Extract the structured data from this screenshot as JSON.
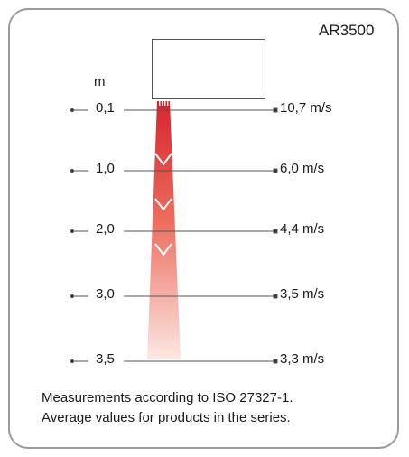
{
  "model": "AR3500",
  "unit": "m",
  "levels": [
    {
      "distance": "0,1",
      "velocity": "10,7 m/s"
    },
    {
      "distance": "1,0",
      "velocity": "6,0 m/s"
    },
    {
      "distance": "2,0",
      "velocity": "4,4 m/s"
    },
    {
      "distance": "3,0",
      "velocity": "3,5 m/s"
    },
    {
      "distance": "3,5",
      "velocity": "3,3 m/s"
    }
  ],
  "note_lines": [
    "Measurements according to ISO 27327-1.",
    "Average values for products in the series."
  ],
  "colors": {
    "jet_top": "#d9232e",
    "jet_bottom": "#fbe3de",
    "frame": "#9a9a9a"
  }
}
